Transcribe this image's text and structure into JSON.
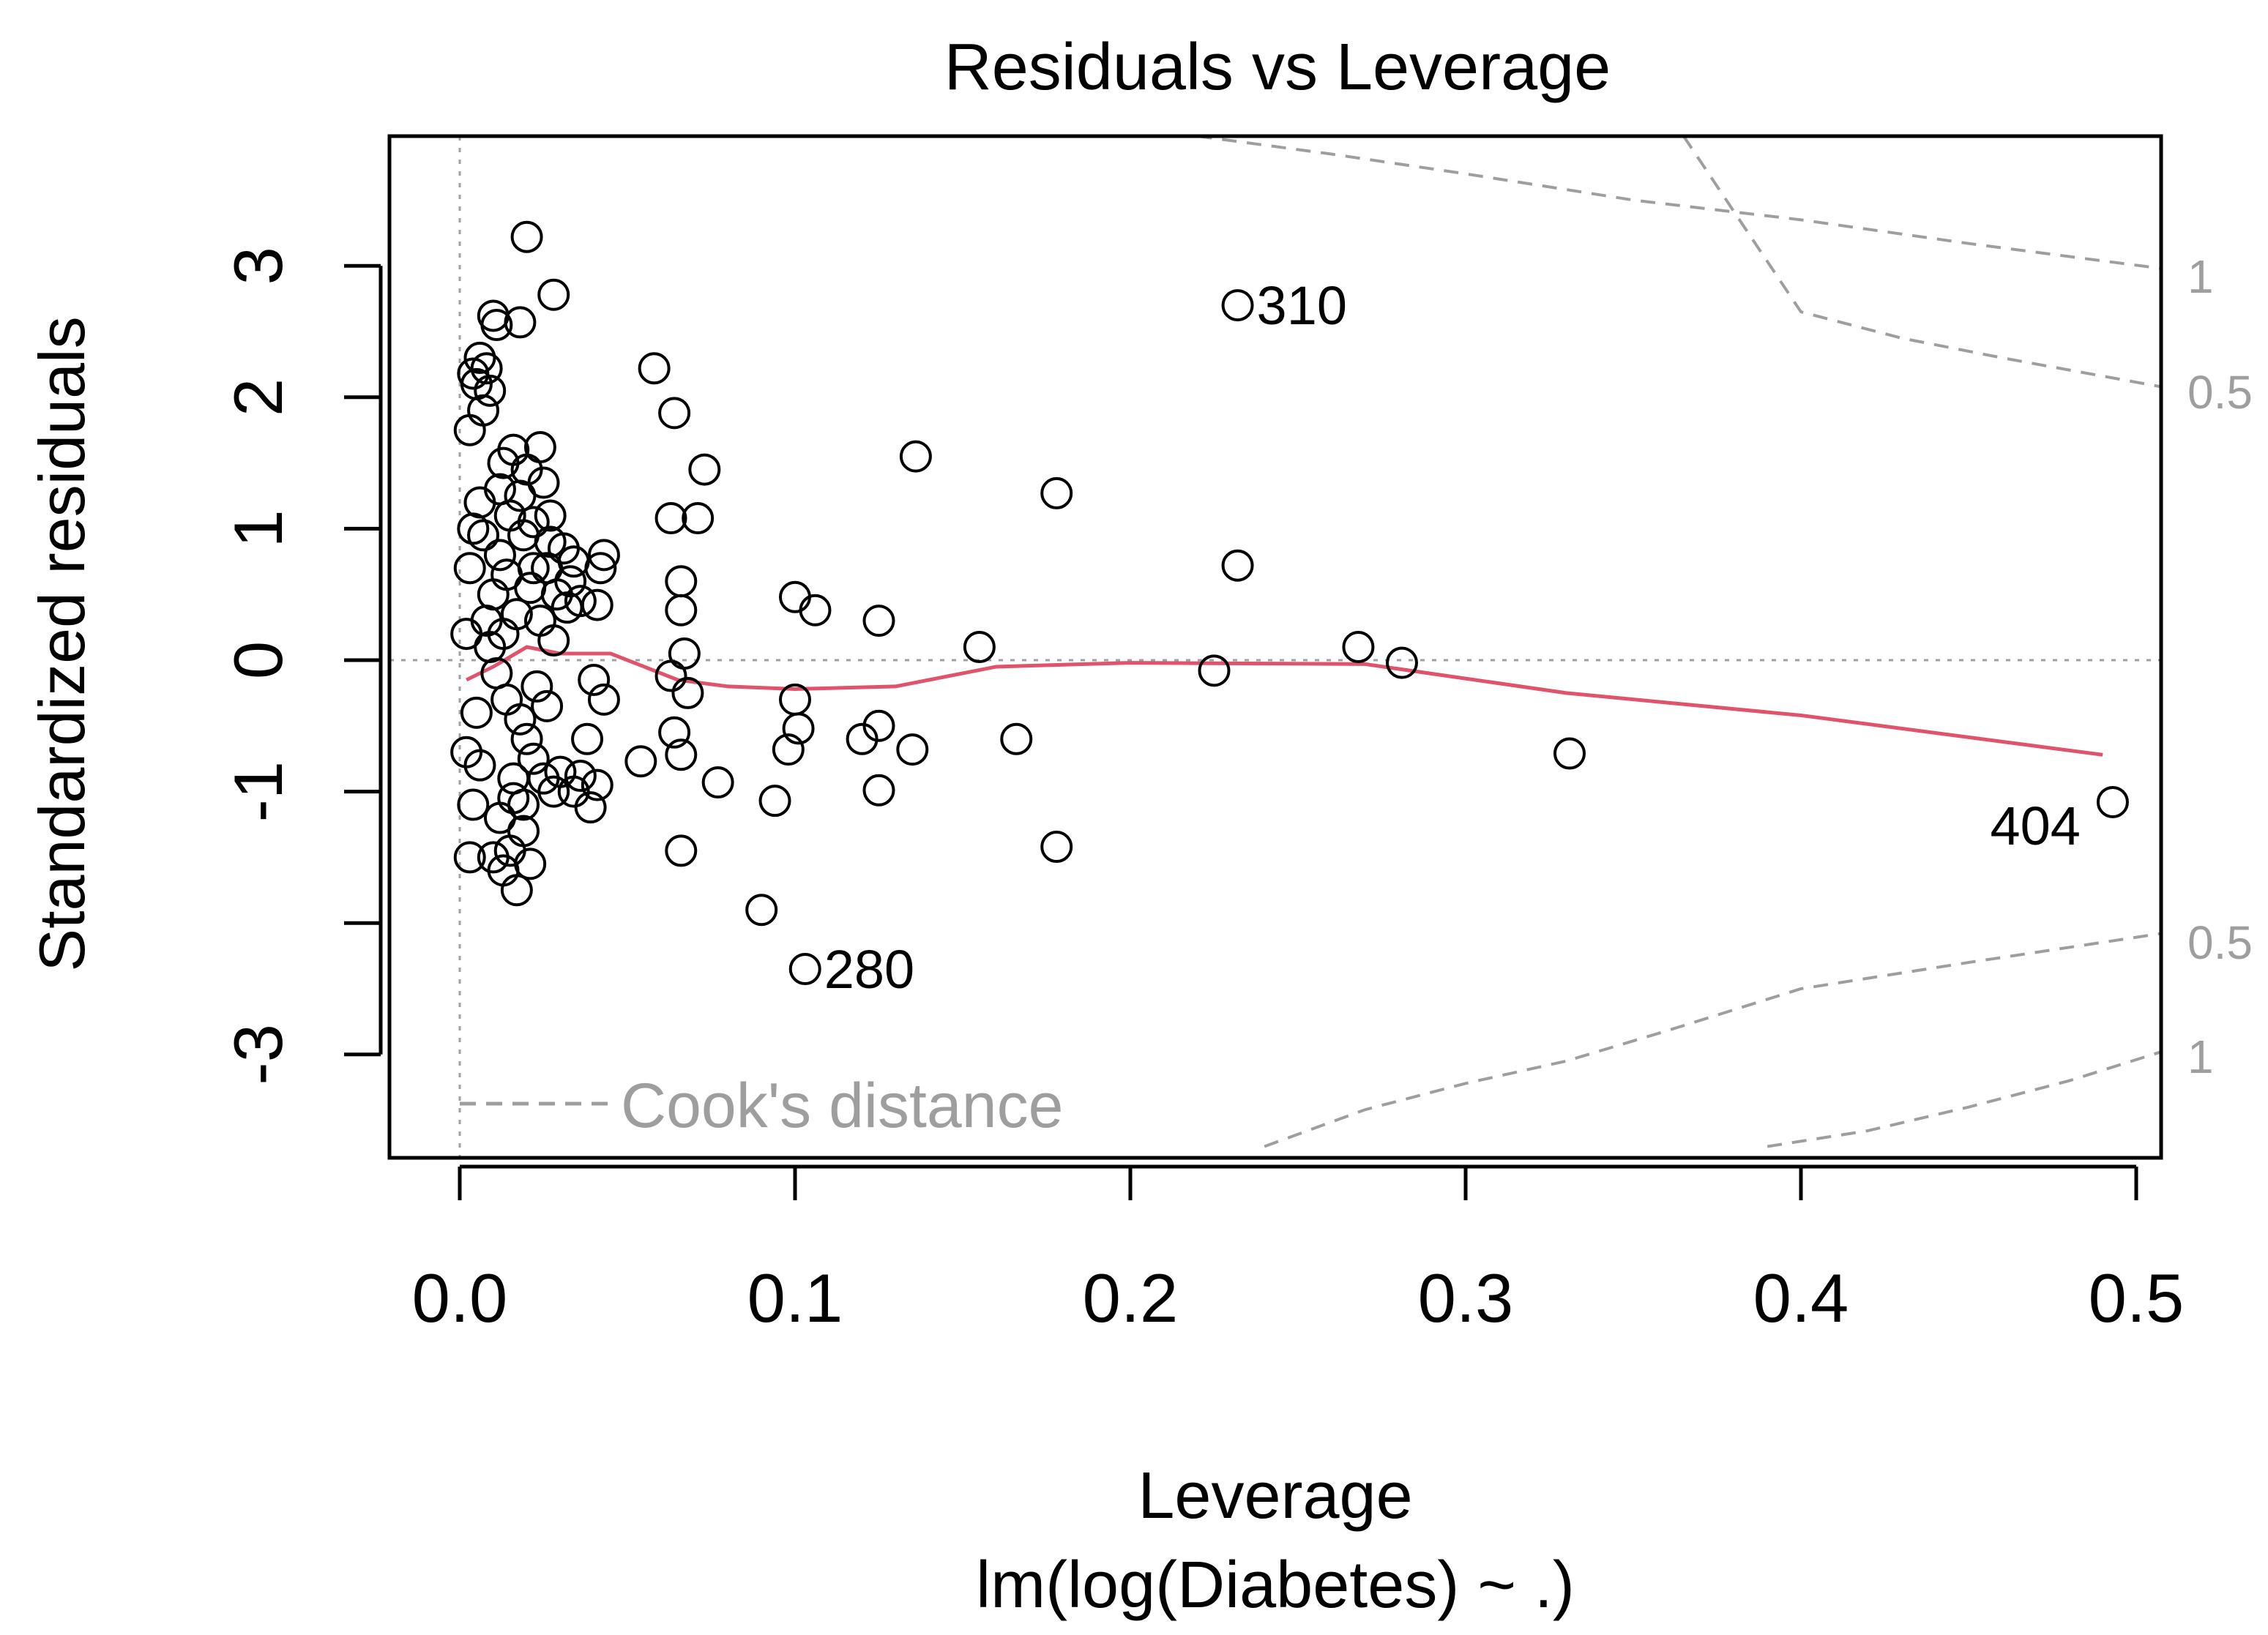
{
  "chart_data": {
    "type": "scatter",
    "title": "Residuals vs Leverage",
    "xlabel": "Leverage",
    "subtitle": "lm(log(Diabetes) ~ .)",
    "ylabel": "Standardized residuals",
    "xlim": [
      -0.021,
      0.51
    ],
    "ylim": [
      -3.7,
      4.05
    ],
    "x_ticks": [
      0.0,
      0.1,
      0.2,
      0.3,
      0.4,
      0.5
    ],
    "x_tick_labels": [
      "0.0",
      "0.1",
      "0.2",
      "0.3",
      "0.4",
      "0.5"
    ],
    "y_ticks": [
      -3,
      -2,
      -1,
      0,
      1,
      2,
      3
    ],
    "y_tick_labels": [
      "-3",
      "",
      "-1",
      "0",
      "1",
      "2",
      "3"
    ],
    "legend": {
      "label": "Cook's distance",
      "position": "bottom-left"
    },
    "cooks_labels": {
      "upper_1": "1",
      "upper_05": "0.5",
      "lower_05": "0.5",
      "lower_1": "1"
    },
    "colors": {
      "points": "#000000",
      "smoother": "#df536b",
      "reference": "#a0a0a0",
      "cooks": "#9e9e9e"
    },
    "cooks_contours": [
      {
        "name": "upper-1",
        "x": [
          0.22,
          0.26,
          0.3,
          0.35,
          0.4,
          0.45,
          0.51
        ],
        "y": [
          4.05,
          3.85,
          3.7,
          3.5,
          3.35,
          3.17,
          2.98
        ]
      },
      {
        "name": "upper-0.5",
        "x": [
          0.365,
          0.4,
          0.43,
          0.46,
          0.51
        ],
        "y": [
          4.05,
          2.65,
          2.45,
          2.3,
          2.08
        ]
      },
      {
        "name": "lower-0.5",
        "x": [
          0.24,
          0.27,
          0.3,
          0.33,
          0.36,
          0.4,
          0.45,
          0.51
        ],
        "y": [
          -3.7,
          -3.42,
          -3.22,
          -3.05,
          -2.82,
          -2.5,
          -2.3,
          -2.08
        ]
      },
      {
        "name": "lower-1",
        "x": [
          0.39,
          0.42,
          0.45,
          0.48,
          0.51
        ],
        "y": [
          -3.7,
          -3.58,
          -3.4,
          -3.2,
          -2.98
        ]
      }
    ],
    "smoother": {
      "name": "lowess",
      "x": [
        0.002,
        0.01,
        0.02,
        0.03,
        0.045,
        0.055,
        0.065,
        0.08,
        0.1,
        0.13,
        0.16,
        0.2,
        0.27,
        0.33,
        0.4,
        0.49
      ],
      "y": [
        -0.15,
        -0.05,
        0.1,
        0.05,
        0.05,
        -0.05,
        -0.15,
        -0.2,
        -0.22,
        -0.2,
        -0.05,
        -0.02,
        -0.03,
        -0.25,
        -0.42,
        -0.72
      ]
    },
    "labeled_points": [
      {
        "id": "310",
        "x": 0.232,
        "y": 2.7
      },
      {
        "id": "280",
        "x": 0.103,
        "y": -2.35
      },
      {
        "id": "404",
        "x": 0.493,
        "y": -1.08
      }
    ],
    "points": [
      [
        0.02,
        3.22
      ],
      [
        0.028,
        2.78
      ],
      [
        0.01,
        2.62
      ],
      [
        0.011,
        2.55
      ],
      [
        0.018,
        2.57
      ],
      [
        0.006,
        2.3
      ],
      [
        0.005,
        2.1
      ],
      [
        0.004,
        2.18
      ],
      [
        0.008,
        2.22
      ],
      [
        0.009,
        2.05
      ],
      [
        0.003,
        1.75
      ],
      [
        0.007,
        1.9
      ],
      [
        0.016,
        1.6
      ],
      [
        0.024,
        1.62
      ],
      [
        0.013,
        1.5
      ],
      [
        0.02,
        1.45
      ],
      [
        0.025,
        1.35
      ],
      [
        0.018,
        1.25
      ],
      [
        0.012,
        1.3
      ],
      [
        0.015,
        1.1
      ],
      [
        0.022,
        1.05
      ],
      [
        0.027,
        1.1
      ],
      [
        0.019,
        0.95
      ],
      [
        0.031,
        0.85
      ],
      [
        0.034,
        0.75
      ],
      [
        0.026,
        0.7
      ],
      [
        0.021,
        0.55
      ],
      [
        0.029,
        0.5
      ],
      [
        0.032,
        0.4
      ],
      [
        0.024,
        0.3
      ],
      [
        0.028,
        0.15
      ],
      [
        0.033,
        0.6
      ],
      [
        0.036,
        0.45
      ],
      [
        0.017,
        0.35
      ],
      [
        0.013,
        0.2
      ],
      [
        0.009,
        0.1
      ],
      [
        0.011,
        -0.1
      ],
      [
        0.014,
        -0.3
      ],
      [
        0.018,
        -0.45
      ],
      [
        0.02,
        -0.6
      ],
      [
        0.022,
        -0.75
      ],
      [
        0.025,
        -0.9
      ],
      [
        0.028,
        -1.0
      ],
      [
        0.03,
        -0.85
      ],
      [
        0.016,
        -1.05
      ],
      [
        0.012,
        -1.2
      ],
      [
        0.019,
        -1.3
      ],
      [
        0.015,
        -1.45
      ],
      [
        0.013,
        -1.6
      ],
      [
        0.017,
        -1.75
      ],
      [
        0.021,
        -1.55
      ],
      [
        0.01,
        -1.5
      ],
      [
        0.023,
        -0.2
      ],
      [
        0.026,
        -0.35
      ],
      [
        0.027,
        0.9
      ],
      [
        0.012,
        0.8
      ],
      [
        0.014,
        0.65
      ],
      [
        0.01,
        0.5
      ],
      [
        0.008,
        0.3
      ],
      [
        0.006,
        1.2
      ],
      [
        0.007,
        0.95
      ],
      [
        0.005,
        -0.4
      ],
      [
        0.006,
        -0.8
      ],
      [
        0.004,
        -1.1
      ],
      [
        0.003,
        -1.5
      ],
      [
        0.002,
        0.2
      ],
      [
        0.003,
        0.7
      ],
      [
        0.002,
        -0.7
      ],
      [
        0.004,
        1.0
      ],
      [
        0.019,
        -1.1
      ],
      [
        0.016,
        -0.9
      ],
      [
        0.022,
        0.7
      ],
      [
        0.04,
        -0.15
      ],
      [
        0.043,
        -0.3
      ],
      [
        0.038,
        -0.6
      ],
      [
        0.041,
        -0.95
      ],
      [
        0.039,
        -1.12
      ],
      [
        0.036,
        -0.88
      ],
      [
        0.034,
        -1.0
      ],
      [
        0.043,
        0.8
      ],
      [
        0.042,
        0.7
      ],
      [
        0.041,
        0.42
      ],
      [
        0.054,
        -0.77
      ],
      [
        0.058,
        2.22
      ],
      [
        0.064,
        1.88
      ],
      [
        0.073,
        1.45
      ],
      [
        0.063,
        1.08
      ],
      [
        0.071,
        1.08
      ],
      [
        0.066,
        0.6
      ],
      [
        0.066,
        0.38
      ],
      [
        0.067,
        0.05
      ],
      [
        0.063,
        -0.12
      ],
      [
        0.068,
        -0.25
      ],
      [
        0.064,
        -0.55
      ],
      [
        0.066,
        -0.72
      ],
      [
        0.066,
        -1.45
      ],
      [
        0.077,
        -0.93
      ],
      [
        0.094,
        -1.07
      ],
      [
        0.1,
        0.48
      ],
      [
        0.106,
        0.38
      ],
      [
        0.1,
        -0.3
      ],
      [
        0.101,
        -0.52
      ],
      [
        0.098,
        -0.68
      ],
      [
        0.09,
        -1.9
      ],
      [
        0.125,
        0.3
      ],
      [
        0.12,
        -0.6
      ],
      [
        0.125,
        -0.5
      ],
      [
        0.135,
        -0.68
      ],
      [
        0.125,
        -0.99
      ],
      [
        0.136,
        1.55
      ],
      [
        0.155,
        0.1
      ],
      [
        0.166,
        -0.6
      ],
      [
        0.178,
        1.27
      ],
      [
        0.178,
        -1.42
      ],
      [
        0.225,
        -0.08
      ],
      [
        0.232,
        0.72
      ],
      [
        0.268,
        0.1
      ],
      [
        0.281,
        -0.02
      ],
      [
        0.331,
        -0.71
      ]
    ]
  }
}
